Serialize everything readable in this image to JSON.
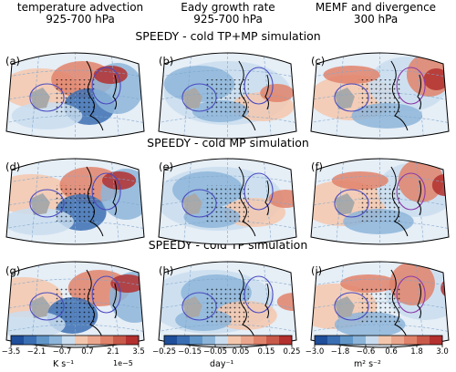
{
  "columns": [
    {
      "line1": "temperature advection",
      "line2": "925-700 hPa"
    },
    {
      "line1": "Eady growth rate",
      "line2": "925-700 hPa"
    },
    {
      "line1": "MEMF and divergence",
      "line2": "300 hPa"
    }
  ],
  "rows": [
    {
      "title": "SPEEDY - cold TP+MP simulation",
      "labels": [
        "(a)",
        "(b)",
        "(c)"
      ]
    },
    {
      "title": "SPEEDY - cold MP simulation",
      "labels": [
        "(d)",
        "(e)",
        "(f)"
      ]
    },
    {
      "title": "SPEEDY - cold TP simulation",
      "labels": [
        "(g)",
        "(h)",
        "(i)"
      ]
    }
  ],
  "colorbars": [
    {
      "ticks": [
        "−3.5",
        "−2.1",
        "−0.7",
        "0.7",
        "2.1",
        "3.5"
      ],
      "unit": "K s⁻¹",
      "exponent": "1e−5"
    },
    {
      "ticks": [
        "−0.25",
        "−0.15",
        "−0.05",
        "0.05",
        "0.15",
        "0.25"
      ],
      "unit": "day⁻¹",
      "exponent": ""
    },
    {
      "ticks": [
        "−3.0",
        "−1.8",
        "−0.6",
        "0.6",
        "1.8",
        "3.0"
      ],
      "unit": "m² s⁻²",
      "exponent": ""
    }
  ],
  "colors": [
    "#3b6fb3",
    "#8db5d9",
    "#c9ddef",
    "#f4c7ad",
    "#e0836b",
    "#b3302f"
  ],
  "chart_data": [
    {
      "type": "heatmap",
      "panel": "(a)",
      "variable": "temperature advection 925-700 hPa",
      "units": "K s⁻¹ (1e−5)",
      "range": [
        -3.5,
        3.5
      ]
    },
    {
      "type": "heatmap",
      "panel": "(b)",
      "variable": "Eady growth rate 925-700 hPa",
      "units": "day⁻¹",
      "range": [
        -0.25,
        0.25
      ]
    },
    {
      "type": "heatmap",
      "panel": "(c)",
      "variable": "MEMF and divergence 300 hPa",
      "units": "m² s⁻²",
      "range": [
        -3.0,
        3.0
      ]
    },
    {
      "type": "heatmap",
      "panel": "(d)",
      "variable": "temperature advection 925-700 hPa",
      "units": "K s⁻¹ (1e−5)",
      "range": [
        -3.5,
        3.5
      ]
    },
    {
      "type": "heatmap",
      "panel": "(e)",
      "variable": "Eady growth rate 925-700 hPa",
      "units": "day⁻¹",
      "range": [
        -0.25,
        0.25
      ]
    },
    {
      "type": "heatmap",
      "panel": "(f)",
      "variable": "MEMF and divergence 300 hPa",
      "units": "m² s⁻²",
      "range": [
        -3.0,
        3.0
      ]
    },
    {
      "type": "heatmap",
      "panel": "(g)",
      "variable": "temperature advection 925-700 hPa",
      "units": "K s⁻¹ (1e−5)",
      "range": [
        -3.5,
        3.5
      ]
    },
    {
      "type": "heatmap",
      "panel": "(h)",
      "variable": "Eady growth rate 925-700 hPa",
      "units": "day⁻¹",
      "range": [
        -0.25,
        0.25
      ]
    },
    {
      "type": "heatmap",
      "panel": "(i)",
      "variable": "MEMF and divergence 300 hPa",
      "units": "m² s⁻²",
      "range": [
        -3.0,
        3.0
      ]
    }
  ]
}
